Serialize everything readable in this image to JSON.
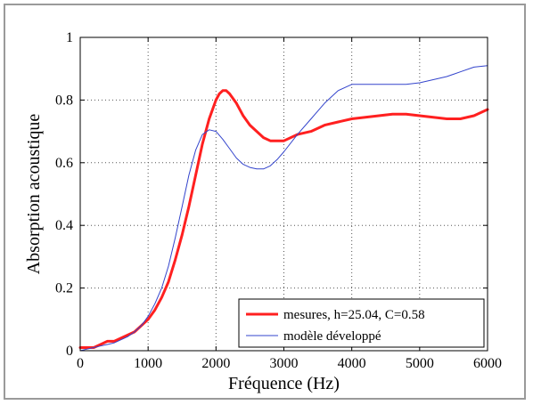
{
  "chart_data": {
    "type": "line",
    "title": "",
    "xlabel": "Fréquence (Hz)",
    "ylabel": "Absorption acoustique",
    "xlim": [
      0,
      6000
    ],
    "ylim": [
      0,
      1
    ],
    "xticks": [
      0,
      1000,
      2000,
      3000,
      4000,
      5000,
      6000
    ],
    "yticks": [
      0,
      0.2,
      0.4,
      0.6,
      0.8,
      1
    ],
    "xtick_labels": [
      "0",
      "1000",
      "2000",
      "3000",
      "4000",
      "5000",
      "6000"
    ],
    "ytick_labels": [
      "0",
      "0.2",
      "0.4",
      "0.6",
      "0.8",
      "1"
    ],
    "grid": true,
    "legend_position": "bottom-right",
    "series": [
      {
        "name": "mesures, h=25.04, C=0.58",
        "color": "#ff2020",
        "x": [
          0,
          100,
          200,
          300,
          400,
          500,
          600,
          700,
          800,
          900,
          1000,
          1100,
          1200,
          1300,
          1400,
          1500,
          1600,
          1700,
          1800,
          1900,
          2000,
          2050,
          2100,
          2150,
          2200,
          2300,
          2400,
          2500,
          2600,
          2700,
          2800,
          2900,
          3000,
          3200,
          3400,
          3600,
          3800,
          4000,
          4200,
          4400,
          4600,
          4800,
          5000,
          5200,
          5400,
          5600,
          5800,
          6000
        ],
        "y": [
          0.01,
          0.01,
          0.01,
          0.02,
          0.03,
          0.03,
          0.04,
          0.05,
          0.06,
          0.08,
          0.1,
          0.13,
          0.17,
          0.22,
          0.29,
          0.37,
          0.46,
          0.56,
          0.66,
          0.74,
          0.8,
          0.82,
          0.83,
          0.83,
          0.82,
          0.79,
          0.75,
          0.72,
          0.7,
          0.68,
          0.67,
          0.67,
          0.67,
          0.69,
          0.7,
          0.72,
          0.73,
          0.74,
          0.745,
          0.75,
          0.755,
          0.755,
          0.75,
          0.745,
          0.74,
          0.74,
          0.75,
          0.77
        ]
      },
      {
        "name": "modèle développé",
        "color": "#3344cc",
        "x": [
          0,
          100,
          200,
          300,
          400,
          500,
          600,
          700,
          800,
          900,
          1000,
          1100,
          1200,
          1300,
          1400,
          1500,
          1600,
          1700,
          1800,
          1900,
          2000,
          2100,
          2200,
          2300,
          2400,
          2500,
          2600,
          2700,
          2800,
          2900,
          3000,
          3200,
          3400,
          3600,
          3800,
          4000,
          4200,
          4400,
          4600,
          4800,
          5000,
          5200,
          5400,
          5600,
          5800,
          6000
        ],
        "y": [
          0.0,
          0.005,
          0.01,
          0.015,
          0.02,
          0.025,
          0.035,
          0.045,
          0.06,
          0.08,
          0.11,
          0.15,
          0.2,
          0.27,
          0.36,
          0.46,
          0.56,
          0.64,
          0.69,
          0.705,
          0.7,
          0.675,
          0.645,
          0.615,
          0.595,
          0.585,
          0.58,
          0.58,
          0.59,
          0.61,
          0.635,
          0.69,
          0.74,
          0.79,
          0.83,
          0.85,
          0.85,
          0.85,
          0.85,
          0.85,
          0.855,
          0.865,
          0.875,
          0.89,
          0.905,
          0.91
        ]
      }
    ]
  }
}
